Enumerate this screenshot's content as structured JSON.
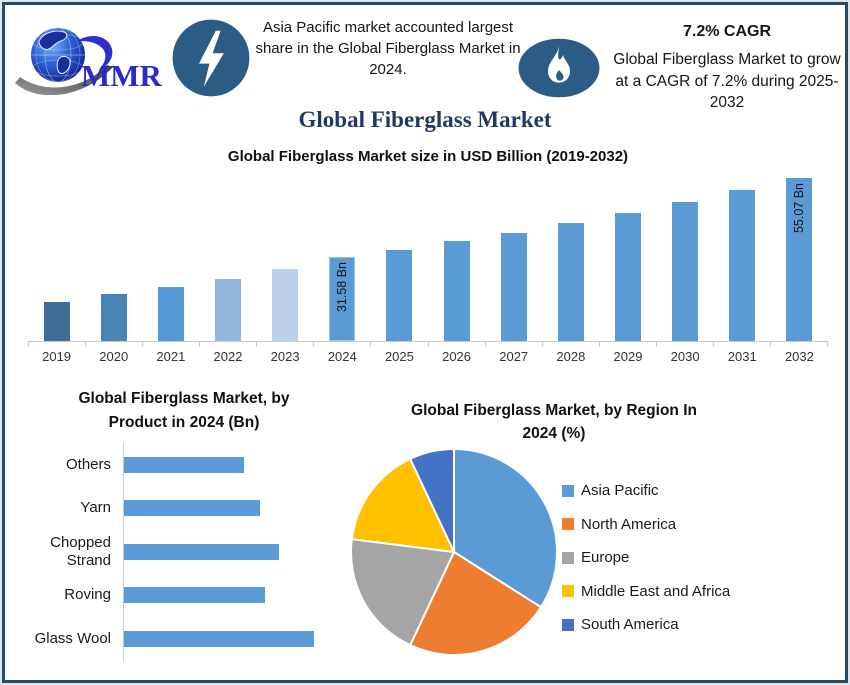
{
  "brand": {
    "logo_text": "MMR"
  },
  "header": {
    "highlight": "Asia Pacific market accounted largest share in the Global Fiberglass Market in 2024.",
    "cagr_value": "7.2% CAGR",
    "cagr_note": "Global Fiberglass Market to grow at a CAGR of 7.2% during 2025-2032"
  },
  "page_title": "Global Fiberglass Market",
  "colors": {
    "frame_border": "#254b63",
    "icon_blue": "#2b5c86",
    "title_navy": "#1f3864",
    "bar_blue": "#5b9bd5",
    "axis_gray": "#c9c9c9"
  },
  "chart_data": [
    {
      "type": "bar",
      "title": "Global Fiberglass Market size in USD Billion (2019-2032)",
      "categories": [
        "2019",
        "2020",
        "2021",
        "2022",
        "2023",
        "2024",
        "2025",
        "2026",
        "2027",
        "2028",
        "2029",
        "2030",
        "2031",
        "2032"
      ],
      "values": [
        18.6,
        20.8,
        23.0,
        25.3,
        28.1,
        31.58,
        33.85,
        36.29,
        38.9,
        41.7,
        44.71,
        47.93,
        51.38,
        55.07
      ],
      "bar_colors": [
        "#3e6d98",
        "#4a84b5",
        "#539ad6",
        "#93b5dc",
        "#bcd0ea",
        "#5b9bd5",
        "#5b9bd5",
        "#5b9bd5",
        "#5b9bd5",
        "#5b9bd5",
        "#5b9bd5",
        "#5b9bd5",
        "#5b9bd5",
        "#5b9bd5"
      ],
      "point_labels": {
        "2024": "31.58 Bn",
        "2032": "55.07 Bn"
      },
      "xlabel": "",
      "ylabel": "",
      "ylim": [
        7,
        57
      ],
      "grid": false,
      "legend_position": "none"
    },
    {
      "type": "bar",
      "orientation": "horizontal",
      "title": "Global Fiberglass Market, by Product in 2024 (Bn)",
      "categories": [
        "Others",
        "Yarn",
        "Chopped Strand",
        "Roving",
        "Glass Wool"
      ],
      "values": [
        5.1,
        5.8,
        6.6,
        6.0,
        8.1
      ],
      "bar_color": "#5b9bd5",
      "xlim": [
        0,
        8.6
      ],
      "grid": false,
      "legend_position": "none"
    },
    {
      "type": "pie",
      "title": "Global Fiberglass Market, by Region In 2024 (%)",
      "labels": [
        "Asia Pacific",
        "North America",
        "Europe",
        "Middle East and Africa",
        "South America"
      ],
      "values": [
        34,
        23,
        20,
        16,
        7
      ],
      "slice_colors": [
        "#5b9bd5",
        "#ed7d31",
        "#a5a5a5",
        "#ffc000",
        "#4472c4"
      ],
      "start_angle": 0,
      "direction": "clockwise",
      "legend_position": "right"
    }
  ]
}
